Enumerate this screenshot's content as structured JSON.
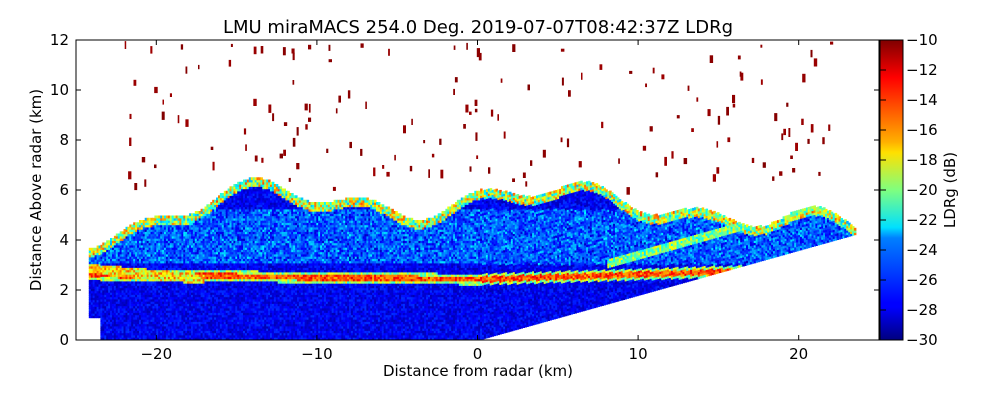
{
  "chart_data": {
    "type": "heatmap",
    "title": "LMU miraMACS 254.0 Deg. 2019-07-07T08:42:37Z  LDRg",
    "xlabel": "Distance from radar (km)",
    "ylabel": "Distance Above radar  (km)",
    "xlim": [
      -25,
      25
    ],
    "ylim": [
      0,
      12
    ],
    "x_ticks": [
      "−20",
      "−10",
      "0",
      "10",
      "20"
    ],
    "y_ticks": [
      "0",
      "2",
      "4",
      "6",
      "8",
      "10",
      "12"
    ],
    "colorbar": {
      "label": "LDRg (dB)",
      "range": [
        -30,
        -10
      ],
      "ticks": [
        "−30",
        "−28",
        "−26",
        "−24",
        "−22",
        "−20",
        "−18",
        "−16",
        "−14",
        "−12",
        "−10"
      ],
      "colormap": "jet"
    },
    "features": {
      "melting_layer_height_km": 2.4,
      "melting_layer_ldr_db": -14,
      "cloud_top_km": 6.2,
      "background_ldr_db": -29,
      "scan_elevation_lower_edge_slope": 0.18
    }
  },
  "colors": {
    "jet_low": "#00007f",
    "jet_high": "#7f0000"
  }
}
